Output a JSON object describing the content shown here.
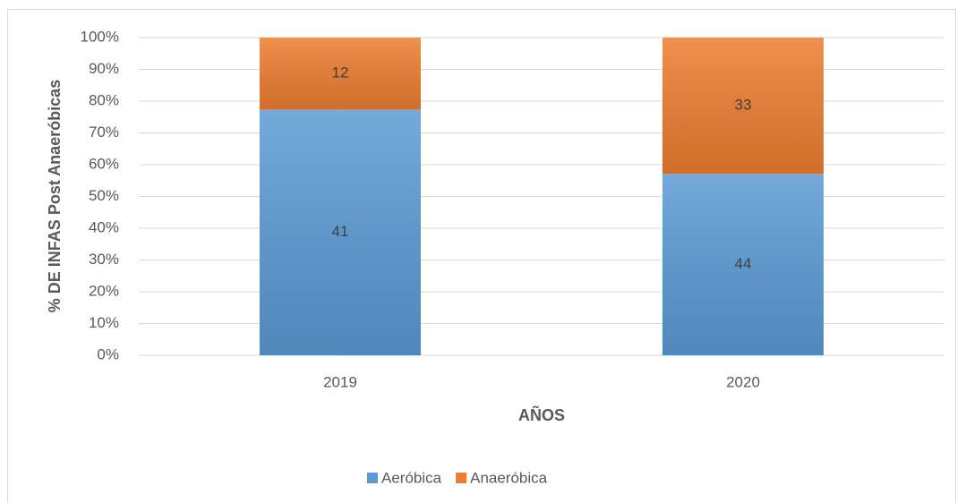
{
  "chart_data": {
    "type": "bar",
    "stacking": "percent",
    "categories": [
      "2019",
      "2020"
    ],
    "series": [
      {
        "name": "Aeróbica",
        "color": "#5b9bd5",
        "values": [
          41,
          44
        ]
      },
      {
        "name": "Anaeróbica",
        "color": "#ed7d31",
        "values": [
          12,
          33
        ]
      }
    ],
    "x_label": "AÑOS",
    "y_label": "% DE INFAS Post Anaeróbicas",
    "ylim": [
      0,
      100
    ],
    "yticks": [
      {
        "value": 0,
        "label": "0%"
      },
      {
        "value": 10,
        "label": "10%"
      },
      {
        "value": 20,
        "label": "20%"
      },
      {
        "value": 30,
        "label": "30%"
      },
      {
        "value": 40,
        "label": "40%"
      },
      {
        "value": 50,
        "label": "50%"
      },
      {
        "value": 60,
        "label": "60%"
      },
      {
        "value": 70,
        "label": "70%"
      },
      {
        "value": 80,
        "label": "80%"
      },
      {
        "value": 90,
        "label": "90%"
      },
      {
        "value": 100,
        "label": "100%"
      }
    ],
    "grid": true,
    "legend": "bottom"
  }
}
